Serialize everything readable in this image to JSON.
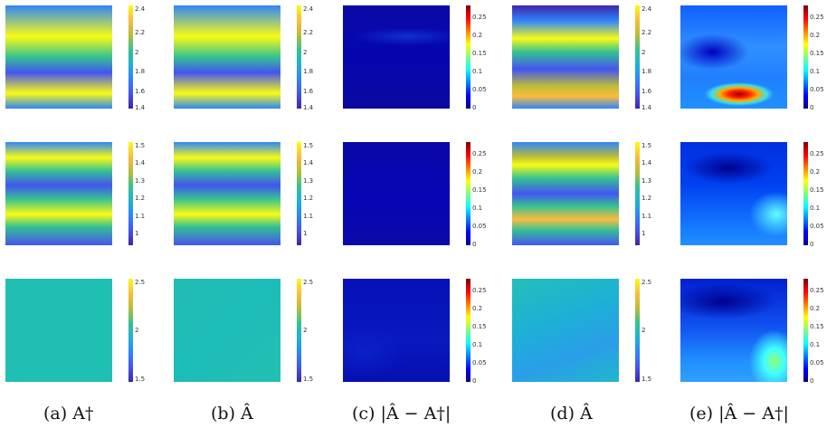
{
  "captions": [
    "(a) A†",
    "(b) Â",
    "(c) |Â − A†|",
    "(d) Â",
    "(e) |Â − A†|"
  ],
  "rows": [
    {
      "ticks_a": [
        "2.4",
        "2.2",
        "2",
        "1.8",
        "1.6",
        "1.4"
      ],
      "ticks_b": [
        "2.4",
        "2.2",
        "2",
        "1.8",
        "1.6",
        "1.4"
      ],
      "ticks_c": [
        "0.25",
        "0.2",
        "0.15",
        "0.1",
        "0.05",
        "0"
      ],
      "ticks_d": [
        "2.4",
        "2.2",
        "2",
        "1.8",
        "1.6",
        "1.4"
      ],
      "ticks_e": [
        "0.25",
        "0.2",
        "0.15",
        "0.1",
        "0.05",
        "0"
      ]
    },
    {
      "ticks_a": [
        "1.5",
        "1.4",
        "1.3",
        "1.2",
        "1.1",
        "1"
      ],
      "ticks_b": [
        "1.5",
        "1.4",
        "1.3",
        "1.2",
        "1.1",
        "1"
      ],
      "ticks_c": [
        "0.25",
        "0.2",
        "0.15",
        "0.1",
        "0.05",
        "0"
      ],
      "ticks_d": [
        "1.5",
        "1.4",
        "1.3",
        "1.2",
        "1.1",
        "1"
      ],
      "ticks_e": [
        "0.25",
        "0.2",
        "0.15",
        "0.1",
        "0.05",
        "0"
      ]
    },
    {
      "ticks_a": [
        "2.5",
        "2",
        "1.5"
      ],
      "ticks_b": [
        "2.5",
        "2",
        "1.5"
      ],
      "ticks_c": [
        "0.25",
        "0.2",
        "0.15",
        "0.1",
        "0.05",
        "0"
      ],
      "ticks_d": [
        "2.5",
        "2",
        "1.5"
      ],
      "ticks_e": [
        "0.25",
        "0.2",
        "0.15",
        "0.1",
        "0.05",
        "0"
      ]
    }
  ],
  "colors": {
    "parula": [
      "#3e26a8",
      "#4454f0",
      "#2f85fb",
      "#1eb3d2",
      "#35c291",
      "#bbbd37",
      "#fcbc3e",
      "#f9fb15"
    ],
    "jet": [
      "#00008f",
      "#0000ff",
      "#0080ff",
      "#00ffff",
      "#80ff80",
      "#ffff00",
      "#ff8000",
      "#ff0000",
      "#800000"
    ]
  }
}
